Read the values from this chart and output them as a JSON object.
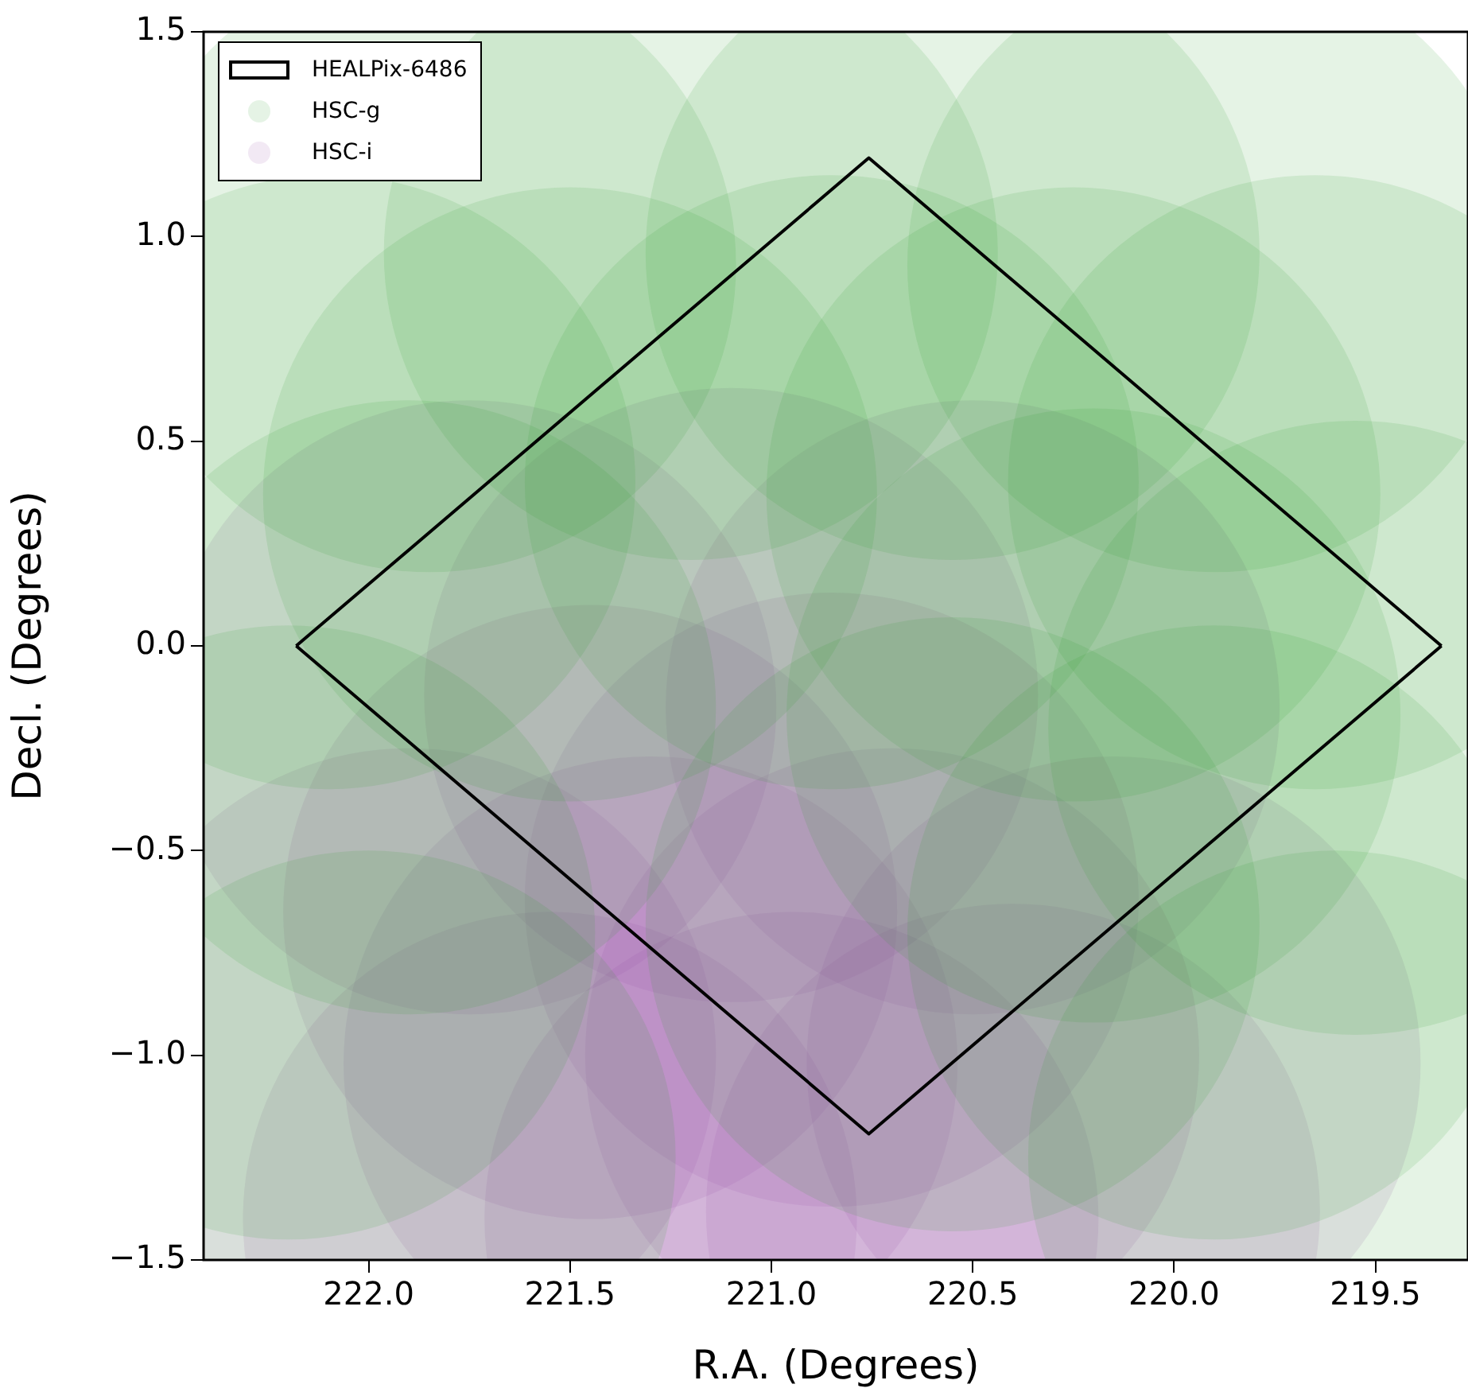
{
  "chart_data": {
    "type": "bubble",
    "xlabel": "R.A. (Degrees)",
    "ylabel": "Decl. (Degrees)",
    "xlim": [
      222.41,
      219.27
    ],
    "ylim": [
      -1.5,
      1.5
    ],
    "xticks": [
      {
        "value": 222,
        "label": "222.0"
      },
      221.5,
      {
        "value": 221,
        "label": "221.0"
      },
      220.5,
      {
        "value": 220,
        "label": "220.0"
      },
      219.5
    ],
    "yticks": [
      {
        "value": -1.5,
        "label": "−1.5"
      },
      {
        "value": -1,
        "label": "−1.0"
      },
      {
        "value": -0.5,
        "label": "−0.5"
      },
      {
        "value": 0,
        "label": "0.0"
      },
      0.5,
      {
        "value": 1,
        "label": "1.0"
      },
      1.5
    ],
    "legend": "top left",
    "grid": false,
    "series": [
      {
        "name": "HEALPix-6486",
        "type": "line",
        "color": "#000000",
        "x": [
          222.18,
          220.758,
          219.336
        ],
        "values": [
          0,
          1.192,
          0
        ]
      },
      {
        "type": "line",
        "color": "#000000",
        "x": [
          222.18,
          220.758,
          219.336
        ],
        "values": [
          0,
          -1.192,
          0
        ]
      },
      {
        "name": "HSC-g",
        "color": "#2ca02c",
        "x": [
          221.85,
          221.2,
          220.55,
          219.9,
          222.1,
          221.5,
          220.85,
          220.25,
          219.65,
          221.9,
          220.2,
          219.55,
          222.2,
          220.55,
          219.9,
          222.0,
          219.6
        ],
        "values": [
          0.93,
          0.96,
          0.96,
          0.93,
          0.4,
          0.37,
          0.4,
          0.37,
          0.4,
          -0.15,
          -0.17,
          -0.2,
          -0.7,
          -0.68,
          -0.7,
          -1.25,
          -1.25
        ],
        "sizes": [
          1,
          1,
          1,
          1,
          1,
          1,
          1,
          1,
          1,
          1,
          1,
          1,
          1,
          1,
          1,
          1,
          1
        ]
      },
      {
        "name": "HSC-i",
        "color": "#984ea3",
        "x": [
          221.75,
          221.1,
          220.5,
          221.45,
          220.85,
          221.9,
          221.3,
          220.7,
          220.15,
          221.55,
          220.95,
          220.4
        ],
        "values": [
          -0.15,
          -0.12,
          -0.15,
          -0.65,
          -0.62,
          -1.0,
          -1.02,
          -1.0,
          -1.02,
          -1.4,
          -1.4,
          -1.38
        ],
        "sizes": [
          1,
          1,
          1,
          1,
          1,
          1,
          1,
          1,
          1,
          1,
          1,
          1
        ]
      }
    ]
  }
}
